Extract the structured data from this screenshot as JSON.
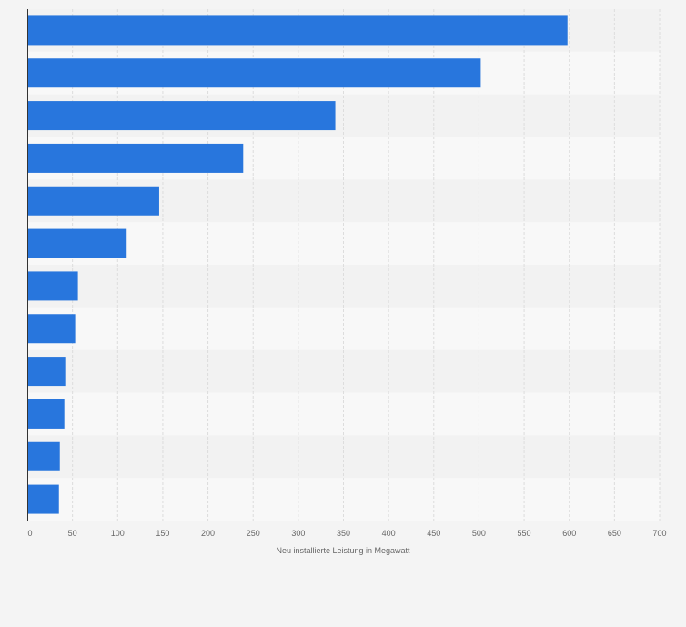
{
  "chart_data": {
    "type": "bar",
    "orientation": "horizontal",
    "categories": [
      "",
      "",
      "",
      "",
      "",
      "",
      "",
      "",
      "",
      "",
      "",
      ""
    ],
    "values": [
      598,
      502,
      341,
      239,
      146,
      110,
      56,
      53,
      42,
      41,
      36,
      35
    ],
    "xlabel": "Neu installierte Leistung in Megawatt",
    "ylabel": "",
    "xlim": [
      0,
      700
    ],
    "xticks": [
      0,
      50,
      100,
      150,
      200,
      250,
      300,
      350,
      400,
      450,
      500,
      550,
      600,
      650,
      700
    ],
    "grid": true,
    "bar_color": "#2876dd",
    "band_colors": [
      "#f2f2f2",
      "#f8f8f8"
    ]
  }
}
